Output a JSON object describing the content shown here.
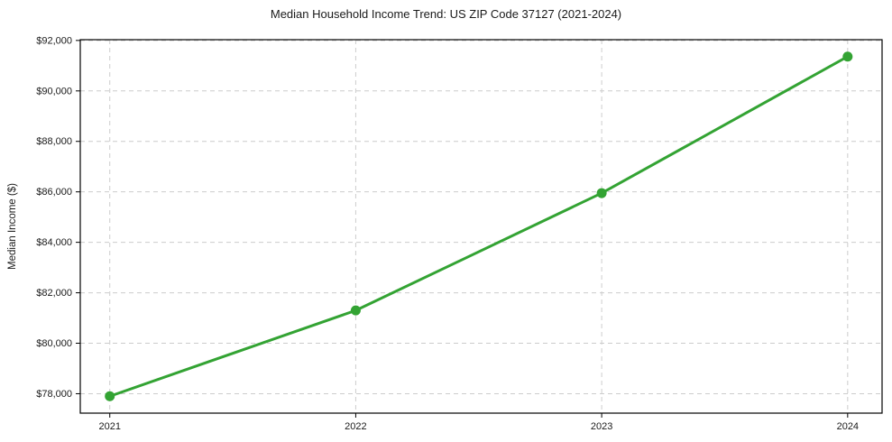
{
  "chart_data": {
    "type": "line",
    "title": "Median Household Income Trend: US ZIP Code 37127 (2021-2024)",
    "xlabel": "",
    "ylabel": "Median Income ($)",
    "x": [
      2021,
      2022,
      2023,
      2024
    ],
    "x_tick_labels": [
      "2021",
      "2022",
      "2023",
      "2024"
    ],
    "y_tick_values": [
      78000,
      80000,
      82000,
      84000,
      86000,
      88000,
      90000,
      92000
    ],
    "y_tick_labels": [
      "$78,000",
      "$80,000",
      "$82,000",
      "$84,000",
      "$86,000",
      "$88,000",
      "$90,000",
      "$92,000"
    ],
    "series": [
      {
        "name": "Median Household Income",
        "values": [
          77900,
          81300,
          85950,
          91360
        ]
      }
    ],
    "xlim": [
      2020.88,
      2024.14
    ],
    "ylim": [
      77230,
      92030
    ],
    "legend": "none",
    "grid": {
      "show": true,
      "style": "dashed",
      "color": "#cccccc"
    },
    "colors": {
      "line": "#33a333",
      "marker": "#33a333",
      "spine": "#000000",
      "tick": "#000000",
      "text": "#1a1a1a",
      "background": "#ffffff"
    },
    "marker": {
      "shape": "circle",
      "radius": 5.5
    },
    "line_width": 3
  }
}
